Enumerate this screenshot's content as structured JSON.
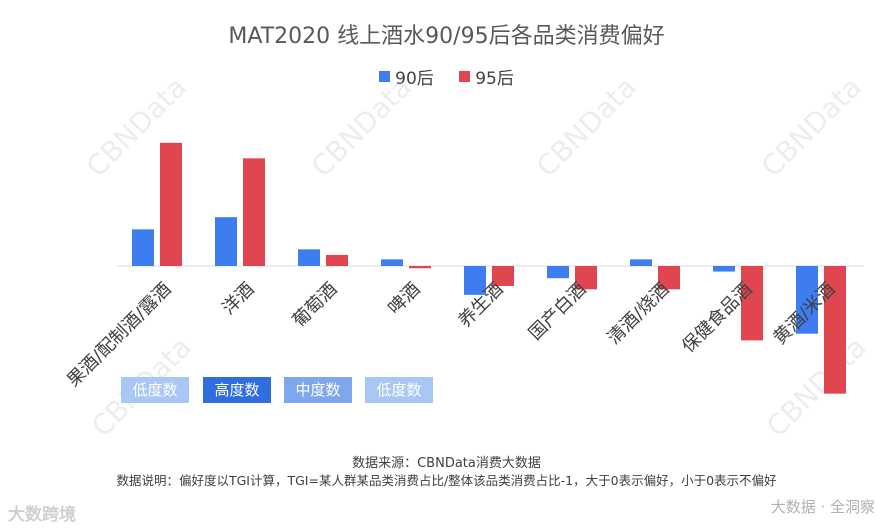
{
  "chart_data": {
    "type": "bar",
    "title": "MAT2020 线上酒水90/95后各品类消费偏好",
    "categories": [
      "果酒/配制酒/露酒",
      "洋酒",
      "葡萄酒",
      "啤酒",
      "养生酒",
      "国产白酒",
      "清酒/烧酒",
      "保健食品酒",
      "黄酒/米酒"
    ],
    "series": [
      {
        "name": "90后",
        "color": "#3d7df0",
        "values": [
          0.33,
          0.44,
          0.15,
          0.06,
          -0.26,
          -0.11,
          0.06,
          -0.05,
          -0.61
        ]
      },
      {
        "name": "95后",
        "color": "#e0464f",
        "values": [
          1.11,
          0.97,
          0.1,
          -0.02,
          -0.18,
          -0.21,
          -0.21,
          -0.67,
          -1.15
        ]
      }
    ],
    "ylim": [
      -1.2,
      1.2
    ],
    "grid": false,
    "legend_position": "top-center",
    "xlabel": "",
    "ylabel": ""
  },
  "level_badges": [
    {
      "label": "低度数",
      "color": "#a9c7f5"
    },
    {
      "label": "高度数",
      "color": "#2f6de0"
    },
    {
      "label": "中度数",
      "color": "#7ea7ee"
    },
    {
      "label": "低度数",
      "color": "#a9c7f5"
    }
  ],
  "notes": {
    "source": "数据来源：CBNData消费大数据",
    "definition": "数据说明：偏好度以TGI计算，TGI=某人群某品类消费占比/整体该品类消费占比-1，大于0表示偏好，小于0表示不偏好"
  },
  "branding": {
    "left": "大数跨境",
    "right": "大数据 · 全洞察"
  },
  "watermarks": [
    "CBNData",
    "CBNData",
    "CBNData",
    "CBNData",
    "CBNData",
    "CBNData"
  ]
}
